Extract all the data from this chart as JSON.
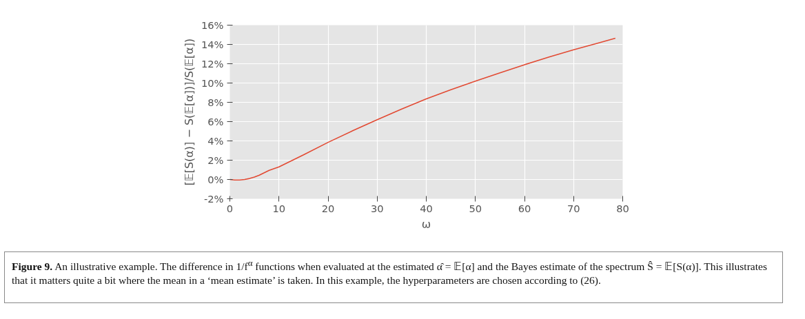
{
  "chart_data": {
    "type": "line",
    "xlabel": "ω",
    "ylabel": "[𝔼[S(α)] − S(𝔼[α])]/S(𝔼[α])",
    "x": [
      0,
      1,
      2,
      3,
      4,
      5,
      6,
      7,
      8,
      10,
      12,
      15,
      20,
      25,
      30,
      35,
      40,
      45,
      50,
      55,
      60,
      65,
      70,
      75,
      78.5
    ],
    "series": [
      {
        "color": "#e24a33",
        "values": [
          0,
          -0.05,
          -0.05,
          0,
          0.1,
          0.25,
          0.45,
          0.7,
          0.95,
          1.3,
          1.8,
          2.55,
          3.85,
          5.05,
          6.2,
          7.3,
          8.35,
          9.3,
          10.2,
          11.05,
          11.9,
          12.7,
          13.45,
          14.15,
          14.65
        ]
      }
    ],
    "xlim": [
      0,
      80
    ],
    "xticks": [
      0,
      10,
      20,
      30,
      40,
      50,
      60,
      70,
      80
    ],
    "ylim": [
      -2,
      16
    ],
    "yticks": [
      {
        "value": -2,
        "label": "-2%"
      },
      {
        "value": 0,
        "label": "0%"
      },
      {
        "value": 2,
        "label": "2%"
      },
      {
        "value": 4,
        "label": "4%"
      },
      {
        "value": 6,
        "label": "6%"
      },
      {
        "value": 8,
        "label": "8%"
      },
      {
        "value": 10,
        "label": "10%"
      },
      {
        "value": 12,
        "label": "12%"
      },
      {
        "value": 14,
        "label": "14%"
      },
      {
        "value": 16,
        "label": "16%"
      }
    ],
    "grid": true,
    "marker": "none",
    "line_style": "solid",
    "annotations": [
      "Figure 9. An illustrative example. The difference in 1/f$^{α}$ functions when evaluated at the estimated α̂ = 𝔼[α] and the Bayes estimate of the spectrum Ŝ = 𝔼[S(α)]. This illustrates that it matters quite a bit where the mean in a ‘mean estimate’ is taken. In this example, the hyperparameters are chosen according to (26)."
    ]
  }
}
